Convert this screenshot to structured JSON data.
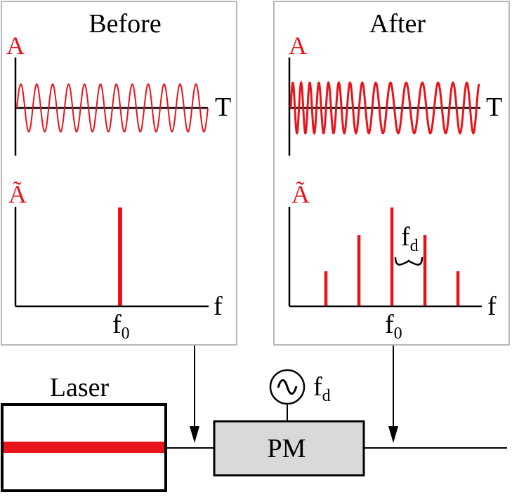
{
  "colors": {
    "signal": "#e8141b",
    "panel_border": "#b8b8b8",
    "pm_fill": "#d9d9d9",
    "ink": "#000000"
  },
  "before_panel": {
    "title": "Before",
    "time_axis": {
      "ylabel": "A",
      "xlabel": "T",
      "cycles": 12,
      "chirped": false
    },
    "spectrum": {
      "ylabel": "Ã",
      "xlabel": "f",
      "center_label": "f",
      "center_subscript": "0",
      "lines": [
        {
          "offset": 0,
          "amplitude": 1.0
        }
      ]
    }
  },
  "after_panel": {
    "title": "After",
    "time_axis": {
      "ylabel": "A",
      "xlabel": "T",
      "cycles": 16,
      "chirped": true
    },
    "spectrum": {
      "ylabel": "Ã",
      "xlabel": "f",
      "center_label": "f",
      "center_subscript": "0",
      "spacing_label": "f",
      "spacing_subscript": "d",
      "lines": [
        {
          "offset": -2,
          "amplitude": 0.35
        },
        {
          "offset": -1,
          "amplitude": 0.72
        },
        {
          "offset": 0,
          "amplitude": 1.0
        },
        {
          "offset": 1,
          "amplitude": 0.72
        },
        {
          "offset": 2,
          "amplitude": 0.35
        }
      ]
    }
  },
  "laser": {
    "label": "Laser"
  },
  "modulator": {
    "label": "PM"
  },
  "oscillator": {
    "icon": "sine-source-icon",
    "label": "f",
    "subscript": "d"
  }
}
